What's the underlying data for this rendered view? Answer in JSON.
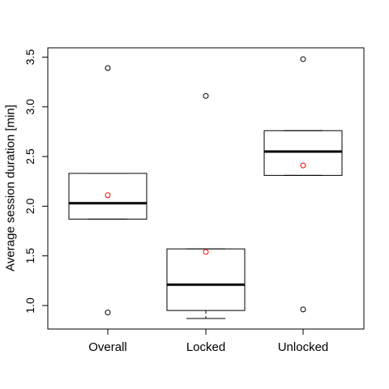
{
  "chart_data": {
    "type": "box",
    "title": "",
    "xlabel": "",
    "ylabel": "Average session duration [min]",
    "ylim": [
      0.8,
      3.6
    ],
    "yticks": [
      1.0,
      1.5,
      2.0,
      2.5,
      3.0,
      3.5
    ],
    "ytick_labels": [
      "1.0",
      "1.5",
      "2.0",
      "2.5",
      "3.0",
      "3.5"
    ],
    "grid": false,
    "categories": [
      "Overall",
      "Locked",
      "Unlocked"
    ],
    "boxes": [
      {
        "q1": 1.87,
        "median": 2.03,
        "q3": 2.33,
        "whisker_low": 1.87,
        "whisker_high": 2.33,
        "mean": 2.11,
        "outliers": [
          3.39,
          0.93
        ]
      },
      {
        "q1": 0.95,
        "median": 1.21,
        "q3": 1.57,
        "whisker_low": 0.87,
        "whisker_high": 1.57,
        "mean": 1.54,
        "outliers": [
          3.11
        ]
      },
      {
        "q1": 2.31,
        "median": 2.55,
        "q3": 2.76,
        "whisker_low": 2.31,
        "whisker_high": 2.76,
        "mean": 2.41,
        "outliers": [
          3.48,
          0.96
        ]
      }
    ],
    "colors": {
      "box": "#000000",
      "outlier": "#000000",
      "mean": "#ff0000"
    }
  }
}
